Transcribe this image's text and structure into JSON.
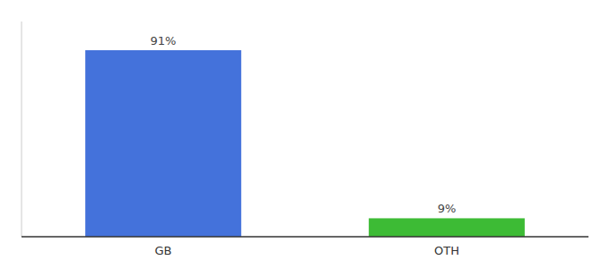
{
  "chart_data": {
    "type": "bar",
    "categories": [
      "GB",
      "OTH"
    ],
    "values": [
      91,
      9
    ],
    "value_labels": [
      "91%",
      "9%"
    ],
    "data_labels": true,
    "colors": [
      "#4472db",
      "#3dbb35"
    ],
    "ylim": [
      0,
      105
    ],
    "tick_labels": "x",
    "grid": false
  }
}
